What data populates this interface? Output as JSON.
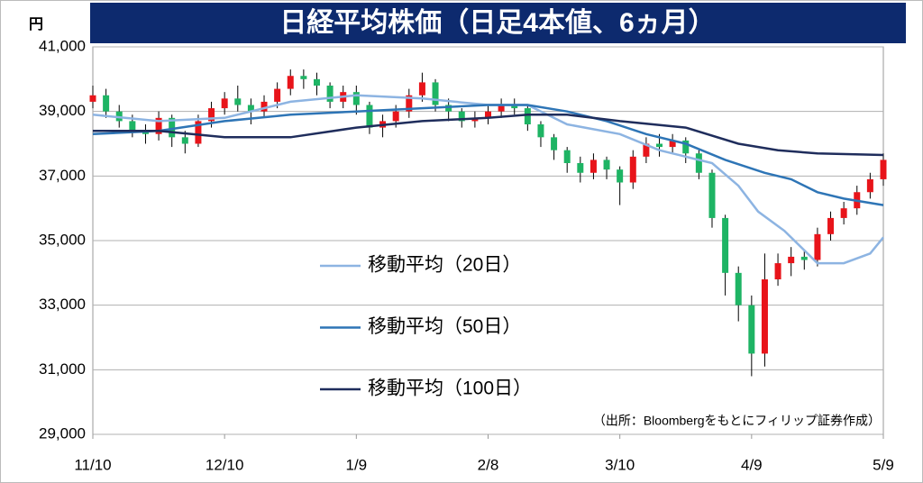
{
  "chart_data": {
    "type": "candlestick",
    "title": "日経平均株価（日足4本値、6ヵ月）",
    "y_unit": "円",
    "source": "（出所：Bloombergをもとにフィリップ証券作成）",
    "up_color": "#e8141a",
    "down_color": "#1eb464",
    "x": [
      0,
      1,
      2,
      3,
      4,
      5,
      6,
      7,
      8,
      9,
      10,
      11,
      12,
      13,
      14,
      15,
      16,
      17,
      18,
      19,
      20,
      21,
      22,
      23,
      24,
      25,
      26,
      27,
      28,
      29,
      30,
      31,
      32,
      33,
      34,
      35,
      36,
      37,
      38,
      39,
      40,
      41,
      42,
      43,
      44,
      45,
      46,
      47,
      48,
      49,
      50,
      51,
      52,
      53,
      54,
      55,
      56,
      57,
      58,
      59,
      60
    ],
    "open": [
      39300,
      39500,
      39000,
      38700,
      38400,
      38300,
      38800,
      38200,
      38000,
      38700,
      39100,
      39400,
      39200,
      39000,
      39300,
      39700,
      40100,
      40000,
      39800,
      39300,
      39600,
      39200,
      38500,
      38700,
      39000,
      39500,
      39900,
      39200,
      39000,
      38700,
      38800,
      39000,
      39200,
      39100,
      38600,
      38200,
      37800,
      37400,
      37100,
      37500,
      37200,
      36800,
      37600,
      38000,
      37900,
      38100,
      37700,
      37100,
      35700,
      34000,
      33000,
      31500,
      33800,
      34300,
      34500,
      34400,
      35200,
      35700,
      36000,
      36500,
      36900
    ],
    "high": [
      39800,
      39700,
      39200,
      38900,
      38600,
      39000,
      38900,
      38400,
      38900,
      39300,
      39600,
      39800,
      39400,
      39500,
      39900,
      40300,
      40300,
      40200,
      39900,
      39800,
      39800,
      39300,
      38900,
      39200,
      39700,
      40200,
      40000,
      39400,
      39100,
      39000,
      39200,
      39400,
      39400,
      39200,
      38700,
      38300,
      37900,
      37600,
      37700,
      37600,
      37300,
      37800,
      38200,
      38300,
      38300,
      38200,
      37800,
      37200,
      35800,
      34200,
      33300,
      34600,
      34600,
      34800,
      34700,
      35400,
      35900,
      36200,
      36700,
      37100,
      37700
    ],
    "low": [
      39100,
      38800,
      38500,
      38200,
      38000,
      38100,
      37900,
      37700,
      37900,
      38500,
      38900,
      39000,
      38600,
      38800,
      39100,
      39500,
      39700,
      39500,
      39100,
      39100,
      38900,
      38300,
      38200,
      38500,
      38800,
      39300,
      39000,
      38700,
      38500,
      38500,
      38600,
      38800,
      38900,
      38400,
      37900,
      37500,
      37100,
      36800,
      36900,
      36900,
      36100,
      36600,
      37400,
      37600,
      37700,
      37400,
      36900,
      35400,
      33300,
      32500,
      30800,
      31100,
      33600,
      33900,
      34100,
      34200,
      35000,
      35500,
      35800,
      36300,
      36700
    ],
    "close": [
      39500,
      39000,
      38700,
      38400,
      38300,
      38800,
      38200,
      38000,
      38700,
      39100,
      39400,
      39200,
      39000,
      39300,
      39700,
      40100,
      40000,
      39800,
      39300,
      39600,
      39200,
      38500,
      38700,
      39000,
      39500,
      39900,
      39200,
      39000,
      38700,
      38800,
      39000,
      39200,
      39100,
      38600,
      38200,
      37800,
      37400,
      37100,
      37500,
      37200,
      36800,
      37600,
      38000,
      37900,
      38100,
      37700,
      37100,
      35700,
      34000,
      33000,
      31500,
      33800,
      34300,
      34500,
      34400,
      35200,
      35700,
      36000,
      36500,
      36900,
      37500
    ],
    "series": [
      {
        "name": "移動平均（20日）",
        "color": "#8db4e2",
        "x": [
          0,
          5,
          10,
          15,
          20,
          25,
          30,
          33,
          36,
          40,
          43,
          47,
          49,
          50.5,
          52.5,
          55,
          57,
          59,
          60
        ],
        "values": [
          38900,
          38700,
          38800,
          39300,
          39500,
          39400,
          39200,
          39200,
          38600,
          38300,
          37800,
          37400,
          36700,
          35900,
          35300,
          34300,
          34300,
          34600,
          35100
        ]
      },
      {
        "name": "移動平均（50日）",
        "color": "#2e75b6",
        "x": [
          0,
          5,
          10,
          15,
          20,
          25,
          30,
          33,
          36,
          39,
          42,
          45,
          48,
          51,
          53,
          55,
          57,
          60
        ],
        "values": [
          38300,
          38400,
          38700,
          38900,
          39000,
          39100,
          39200,
          39200,
          39000,
          38700,
          38300,
          38000,
          37500,
          37100,
          36900,
          36500,
          36300,
          36100
        ]
      },
      {
        "name": "移動平均（100日）",
        "color": "#1f2d5c",
        "x": [
          0,
          5,
          10,
          15,
          20,
          25,
          30,
          33,
          36,
          40,
          45,
          49,
          52,
          55,
          60
        ],
        "values": [
          38400,
          38400,
          38200,
          38200,
          38500,
          38700,
          38800,
          38900,
          38900,
          38700,
          38500,
          38000,
          37800,
          37700,
          37650
        ]
      }
    ],
    "xlim": [
      0,
      60
    ],
    "xticks": [
      {
        "value": 0,
        "label": "11/10"
      },
      {
        "value": 10,
        "label": "12/10"
      },
      {
        "value": 20,
        "label": "1/9"
      },
      {
        "value": 30,
        "label": "2/8"
      },
      {
        "value": 40,
        "label": "3/10"
      },
      {
        "value": 50,
        "label": "4/9"
      },
      {
        "value": 60,
        "label": "5/9"
      }
    ],
    "ylim": [
      29000,
      41000
    ],
    "yticks": [
      {
        "value": 29000,
        "label": "29,000"
      },
      {
        "value": 31000,
        "label": "31,000"
      },
      {
        "value": 33000,
        "label": "33,000"
      },
      {
        "value": 35000,
        "label": "35,000"
      },
      {
        "value": 37000,
        "label": "37,000"
      },
      {
        "value": 39000,
        "label": "39,000"
      },
      {
        "value": 41000,
        "label": "41,000"
      }
    ],
    "grid": true
  }
}
